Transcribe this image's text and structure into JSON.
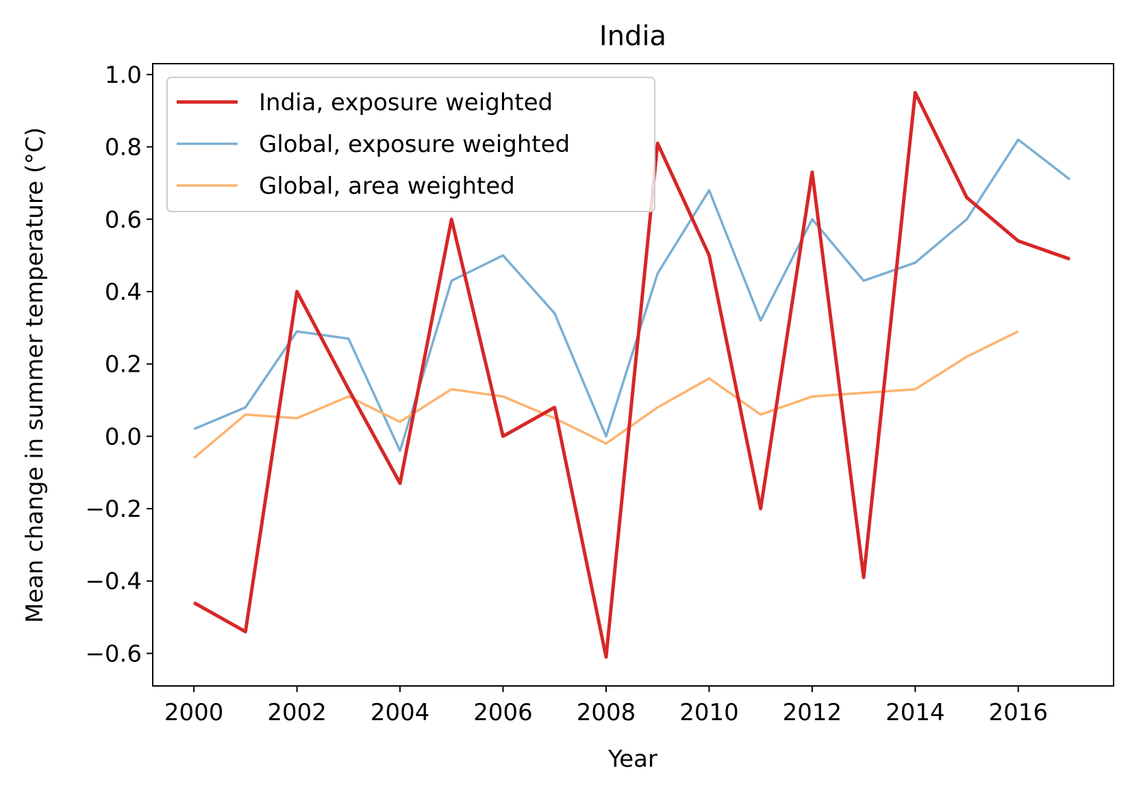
{
  "chart_data": {
    "type": "line",
    "title": "India",
    "xlabel": "Year",
    "ylabel": "Mean change in summer temperature (°C)",
    "xlim": [
      1999.2,
      2017.85
    ],
    "ylim": [
      -0.69,
      1.03
    ],
    "xticks": [
      2000,
      2002,
      2004,
      2006,
      2008,
      2010,
      2012,
      2014,
      2016
    ],
    "xtick_labels": [
      "2000",
      "2002",
      "2004",
      "2006",
      "2008",
      "2010",
      "2012",
      "2014",
      "2016"
    ],
    "yticks": [
      -0.6,
      -0.4,
      -0.2,
      0.0,
      0.2,
      0.4,
      0.6,
      0.8,
      1.0
    ],
    "ytick_labels": [
      "−0.6",
      "−0.4",
      "−0.2",
      "0.0",
      "0.2",
      "0.4",
      "0.6",
      "0.8",
      "1.0"
    ],
    "grid": false,
    "legend_position": "top-left",
    "series": [
      {
        "name": "India, exposure weighted",
        "color": "#d62728",
        "x": [
          2000,
          2001,
          2002,
          2003,
          2004,
          2005,
          2006,
          2007,
          2008,
          2009,
          2010,
          2011,
          2012,
          2013,
          2014,
          2015,
          2016,
          2017
        ],
        "y": [
          -0.46,
          -0.54,
          0.4,
          0.13,
          -0.13,
          0.6,
          0.0,
          0.08,
          -0.61,
          0.81,
          0.5,
          -0.2,
          0.73,
          -0.39,
          0.95,
          0.66,
          0.54,
          0.49
        ]
      },
      {
        "name": "Global, exposure weighted",
        "color": "#7bafd4",
        "x": [
          2000,
          2001,
          2002,
          2003,
          2004,
          2005,
          2006,
          2007,
          2008,
          2009,
          2010,
          2011,
          2012,
          2013,
          2014,
          2015,
          2016,
          2017
        ],
        "y": [
          0.02,
          0.08,
          0.29,
          0.27,
          -0.04,
          0.43,
          0.5,
          0.34,
          0.0,
          0.45,
          0.68,
          0.32,
          0.6,
          0.43,
          0.48,
          0.6,
          0.82,
          0.71
        ]
      },
      {
        "name": "Global, area weighted",
        "color": "#fdb36e",
        "x": [
          2000,
          2001,
          2002,
          2003,
          2004,
          2005,
          2006,
          2007,
          2008,
          2009,
          2010,
          2011,
          2012,
          2013,
          2014,
          2015,
          2016
        ],
        "y": [
          -0.06,
          0.06,
          0.05,
          0.11,
          0.04,
          0.13,
          0.11,
          0.05,
          -0.02,
          0.08,
          0.16,
          0.06,
          0.11,
          0.12,
          0.13,
          0.22,
          0.29
        ]
      }
    ]
  }
}
